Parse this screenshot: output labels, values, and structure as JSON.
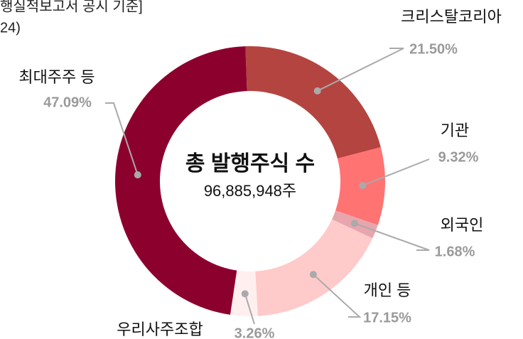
{
  "chart_data": {
    "type": "donut",
    "subtitle_lines": [
      "행실적보고서 공시 기준]",
      "24)"
    ],
    "center_title": "총 발행주식 수",
    "center_value": "96,885,948주",
    "categories": [
      "크리스탈코리아",
      "기관",
      "외국인",
      "개인 등",
      "우리사주조합",
      "최대주주 등"
    ],
    "values": [
      21.5,
      9.32,
      1.68,
      17.15,
      3.26,
      47.09
    ],
    "value_labels": [
      "21.50%",
      "9.32%",
      "1.68%",
      "17.15%",
      "3.26%",
      "47.09%"
    ],
    "colors": [
      "#b4443f",
      "#ff7373",
      "#e7a5ad",
      "#ffcaca",
      "#fff0ef",
      "#8c002e"
    ]
  }
}
